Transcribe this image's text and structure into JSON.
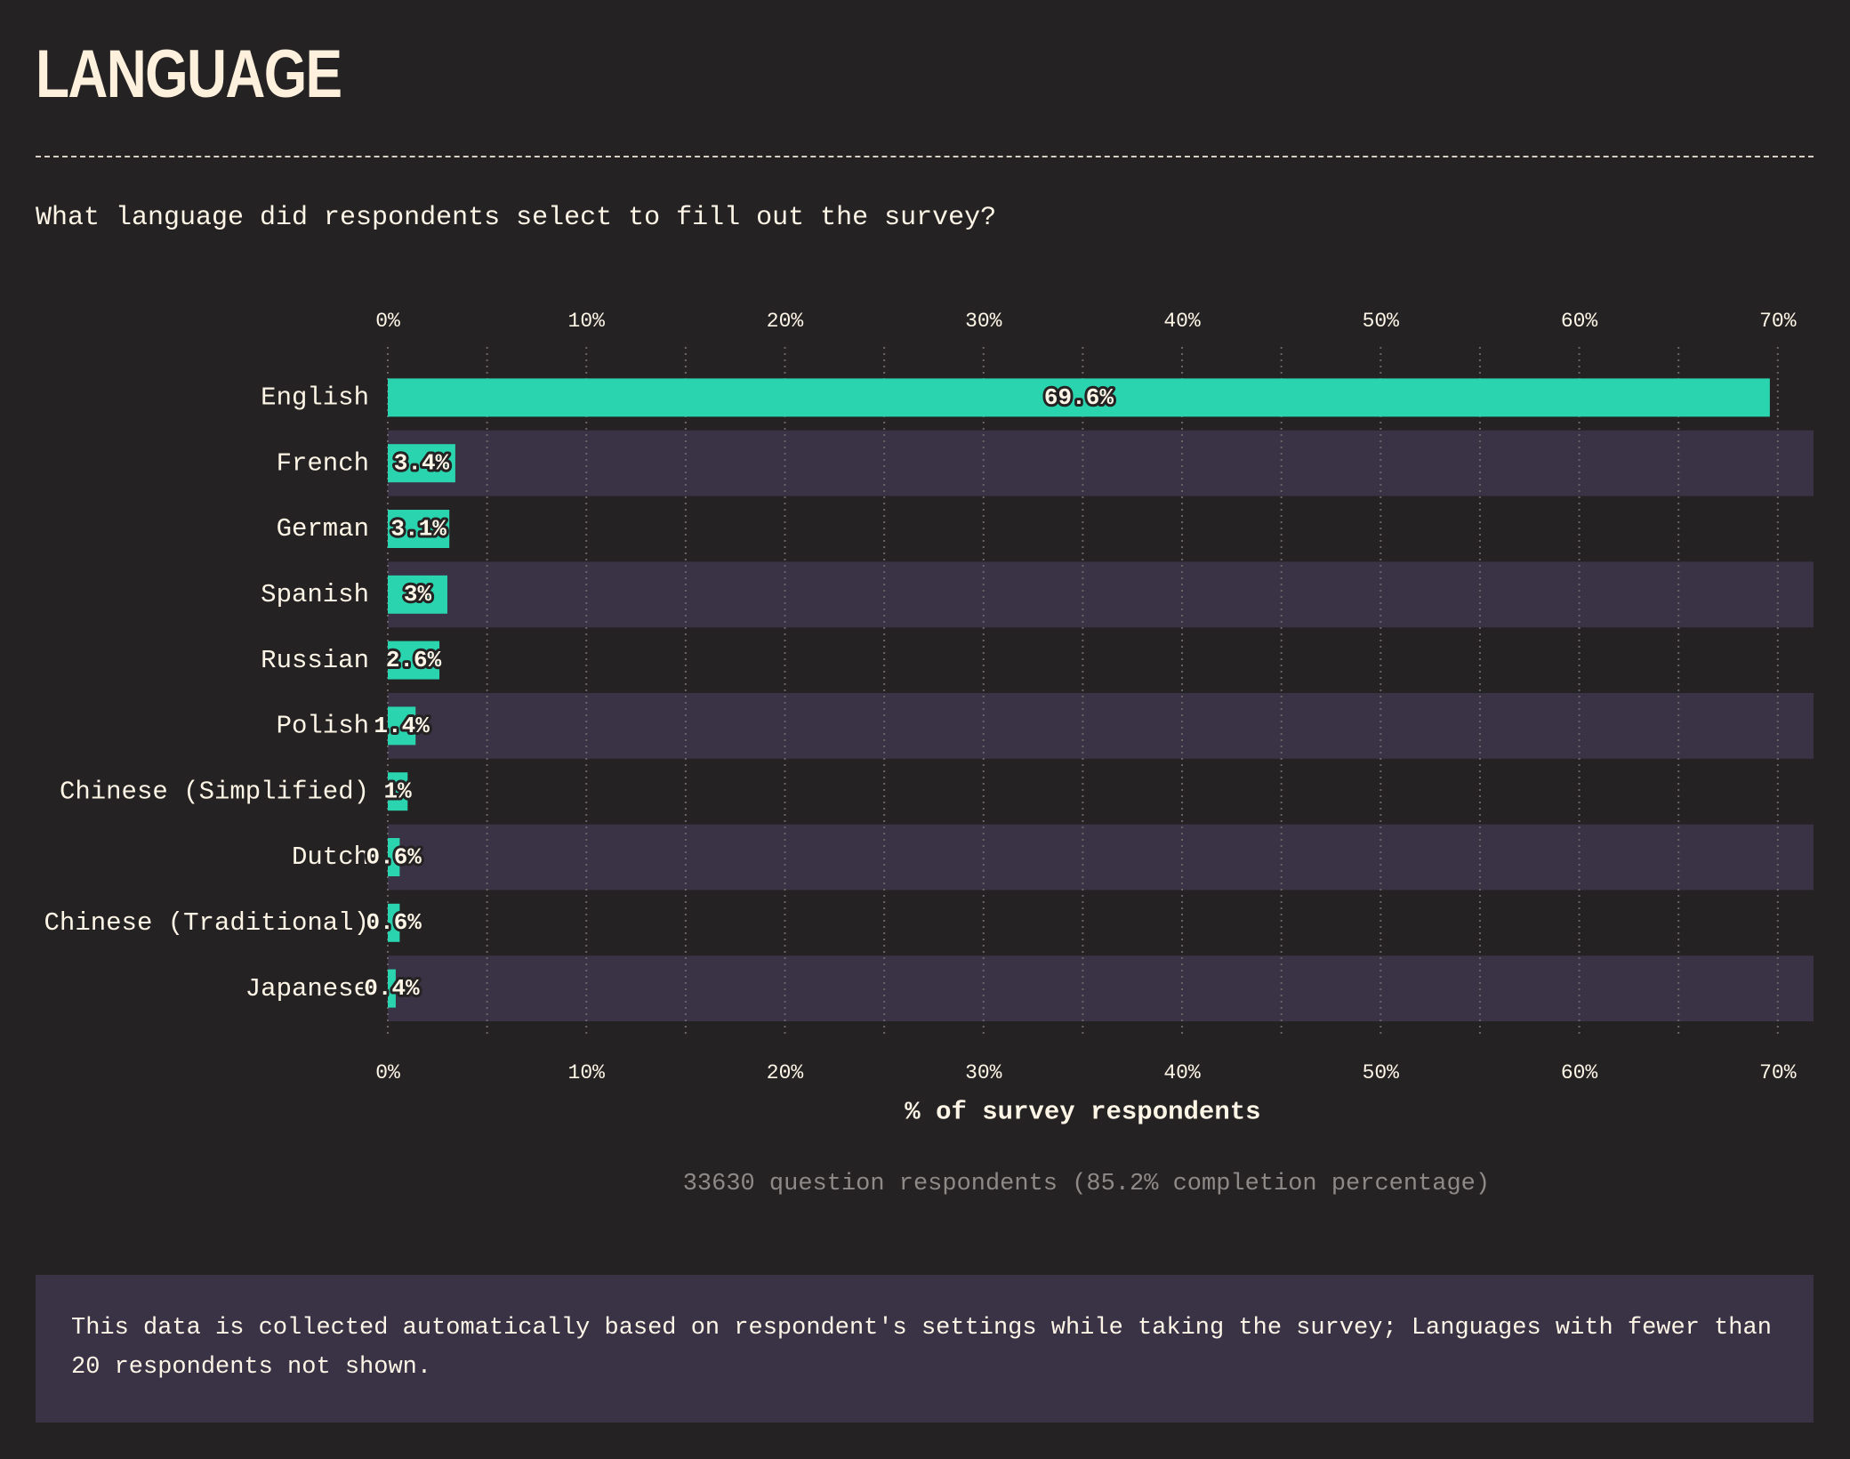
{
  "header": {
    "title": "LANGUAGE",
    "question": "What language did respondents select to fill out the survey?"
  },
  "chart_data": {
    "type": "bar",
    "orientation": "horizontal",
    "categories": [
      "English",
      "French",
      "German",
      "Spanish",
      "Russian",
      "Polish",
      "Chinese (Simplified)",
      "Dutch",
      "Chinese (Traditional)",
      "Japanese"
    ],
    "values": [
      69.6,
      3.4,
      3.1,
      3,
      2.6,
      1.4,
      1,
      0.6,
      0.6,
      0.4
    ],
    "value_labels": [
      "69.6%",
      "3.4%",
      "3.1%",
      "3%",
      "2.6%",
      "1.4%",
      "1%",
      "0.6%",
      "0.6%",
      "0.4%"
    ],
    "color": "#2ad4ae",
    "band_color": "#3a3346",
    "xlim": [
      0,
      71.8
    ],
    "xticks": [
      {
        "value": 0,
        "label": "0%"
      },
      {
        "value": 10,
        "label": "10%"
      },
      {
        "value": 20,
        "label": "20%"
      },
      {
        "value": 30,
        "label": "30%"
      },
      {
        "value": 40,
        "label": "40%"
      },
      {
        "value": 50,
        "label": "50%"
      },
      {
        "value": 60,
        "label": "60%"
      },
      {
        "value": 70,
        "label": "70%"
      }
    ],
    "xminorticks": [
      5,
      15,
      25,
      35,
      45,
      55,
      65
    ],
    "grid": true,
    "xlabel": "% of survey respondents",
    "footnote": "33630 question respondents (85.2% completion percentage)"
  },
  "note": "This data is collected automatically based on respondent's settings while taking the survey; Languages with fewer than 20 respondents not shown."
}
